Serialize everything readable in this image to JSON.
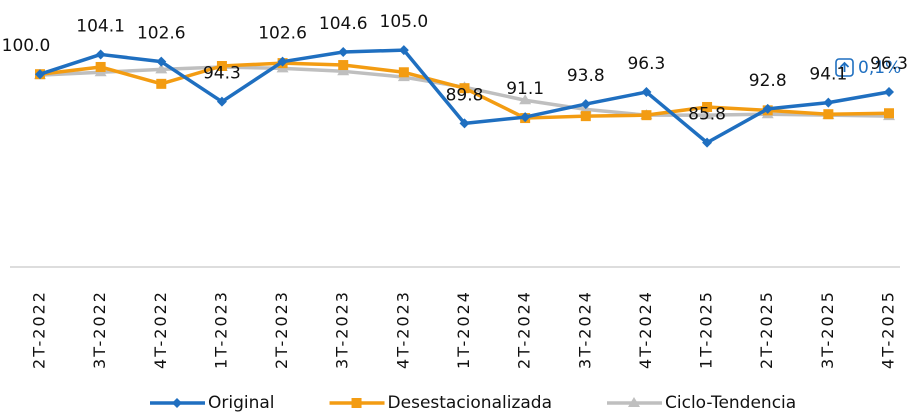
{
  "chart_data": {
    "type": "line",
    "categories": [
      "2T-2022",
      "3T-2022",
      "4T-2022",
      "1T-2023",
      "2T-2023",
      "3T-2023",
      "4T-2023",
      "1T-2024",
      "2T-2024",
      "3T-2024",
      "4T-2024",
      "1T-2025",
      "2T-2025",
      "3T-2025",
      "4T-2025"
    ],
    "series": [
      {
        "name": "Original",
        "color": "#1f6fc0",
        "marker": "diamond",
        "values": [
          100.0,
          104.1,
          102.6,
          94.3,
          102.6,
          104.6,
          105.0,
          89.8,
          91.1,
          93.8,
          96.3,
          85.8,
          92.8,
          94.1,
          96.3
        ],
        "value_labels": [
          "100.0",
          "104.1",
          "102.6",
          "94.3",
          "102.6",
          "104.6",
          "105.0",
          "89.8",
          "91.1",
          "93.8",
          "96.3",
          "85.8",
          "92.8",
          "94.1",
          "96.3"
        ]
      },
      {
        "name": "Desestacionalizada",
        "color": "#f39c12",
        "marker": "square",
        "values": [
          100.0,
          101.5,
          98.0,
          101.7,
          102.3,
          101.9,
          100.4,
          97.1,
          90.9,
          91.3,
          91.5,
          93.2,
          92.5,
          91.7,
          91.9
        ]
      },
      {
        "name": "Ciclo-Tendencia",
        "color": "#bfbfbf",
        "marker": "triangle",
        "values": [
          99.8,
          100.4,
          101.0,
          101.5,
          101.2,
          100.6,
          99.4,
          97.3,
          94.6,
          92.7,
          91.5,
          91.5,
          91.7,
          91.5,
          91.3
        ]
      }
    ],
    "ylim": [
      60,
      110
    ],
    "annotation": "0,1%",
    "legend": "bottom"
  }
}
